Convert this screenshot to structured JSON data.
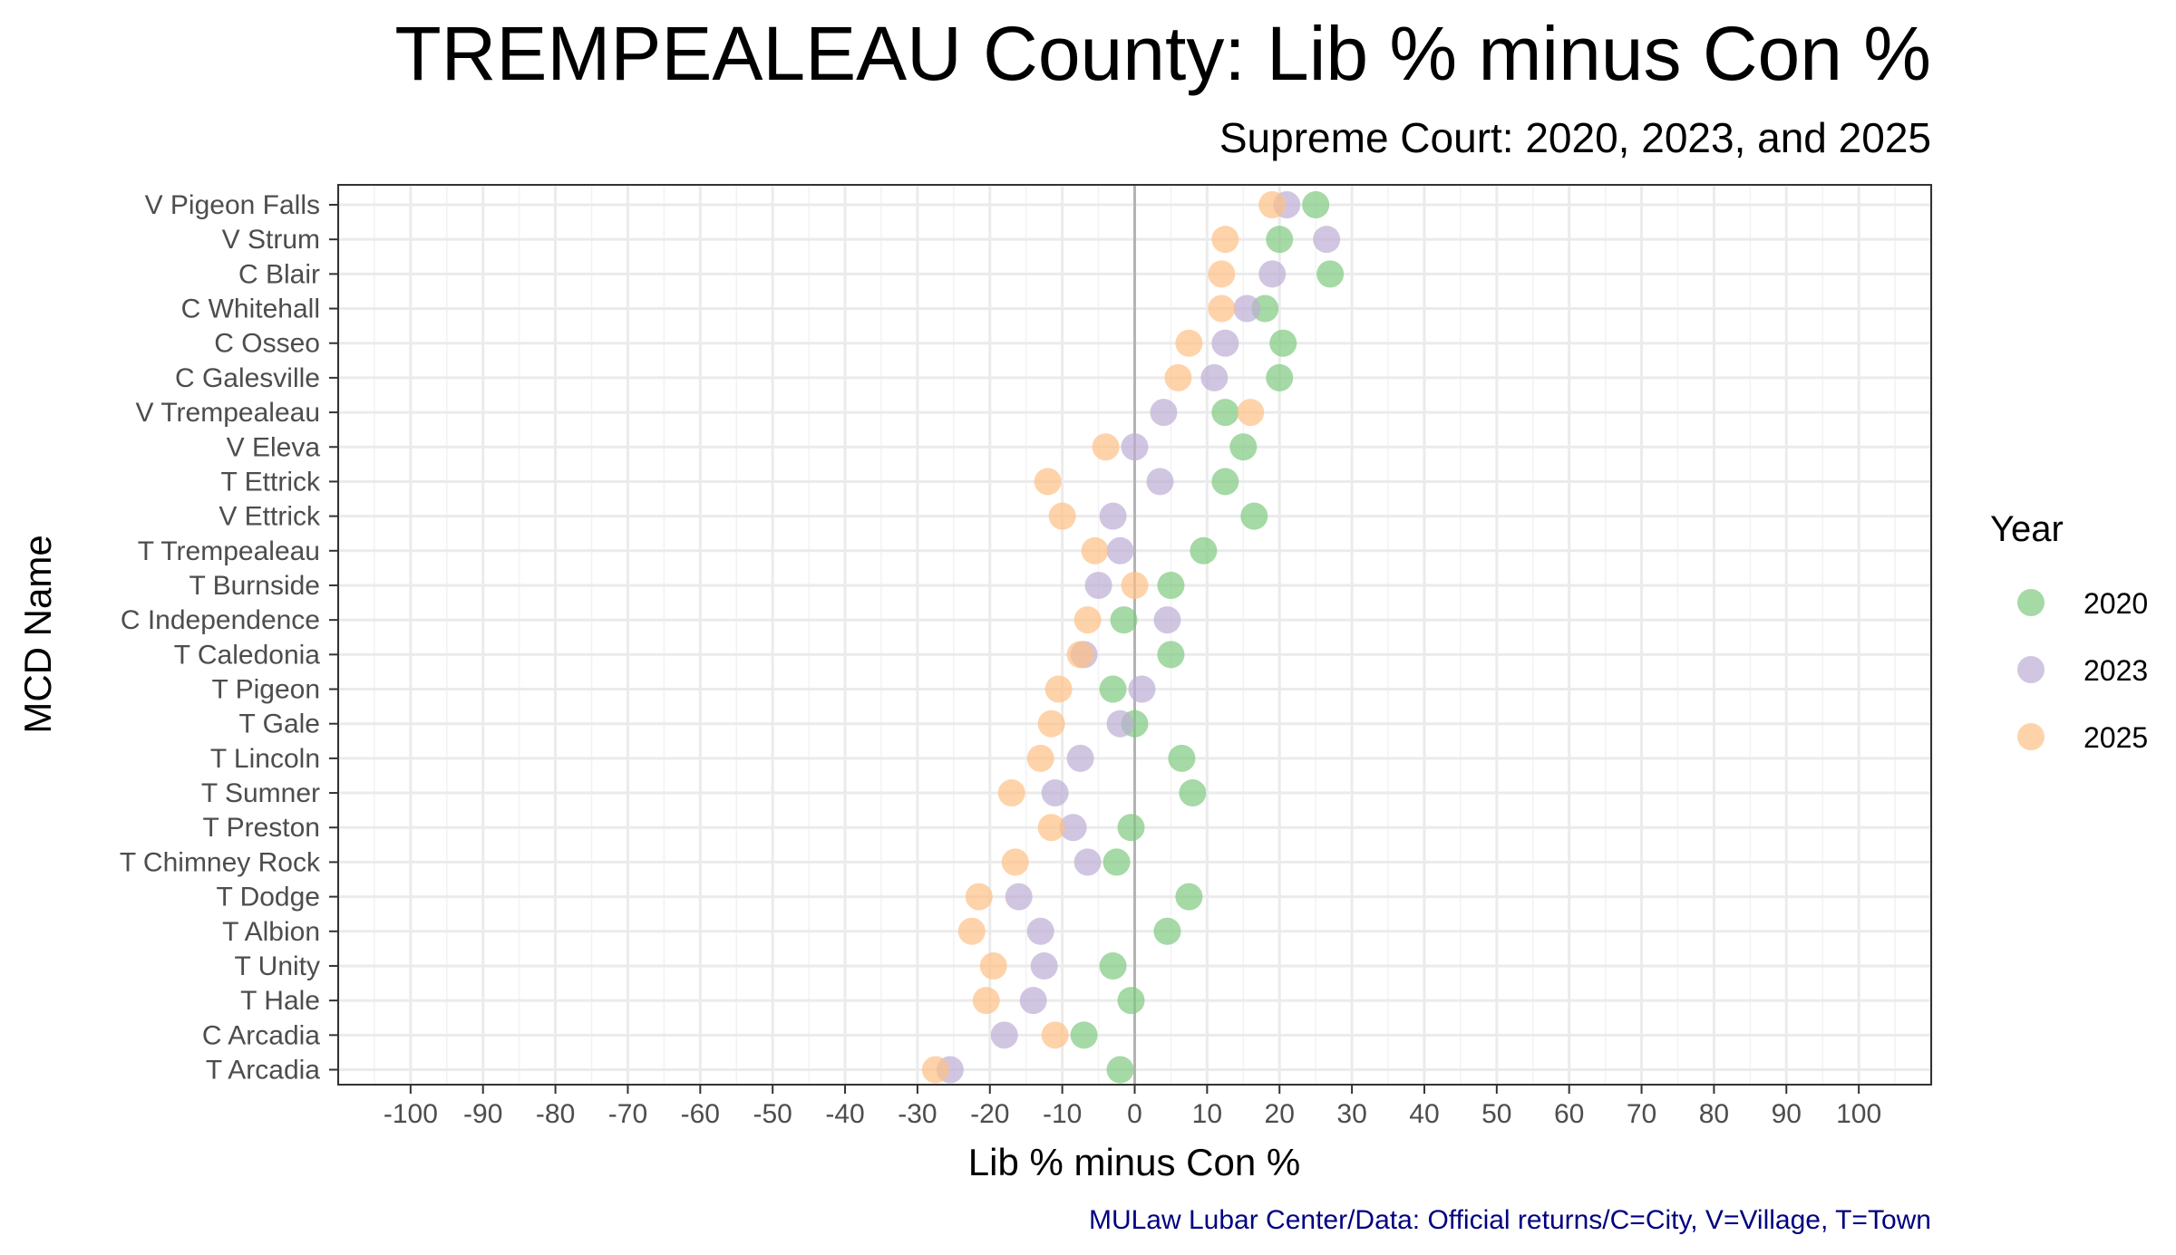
{
  "chart_data": {
    "type": "scatter",
    "title": "TREMPEALEAU County: Lib % minus Con %",
    "subtitle": "Supreme Court: 2020, 2023, and 2025",
    "xlabel": "Lib % minus Con %",
    "ylabel": "MCD Name",
    "caption": "MULaw Lubar Center/Data: Official returns/C=City, V=Village, T=Town",
    "xlim": [
      -110,
      110
    ],
    "x_ticks": [
      "-100",
      "-90",
      "-80",
      "-70",
      "-60",
      "-50",
      "-40",
      "-30",
      "-20",
      "-10",
      "0",
      "10",
      "20",
      "30",
      "40",
      "50",
      "60",
      "70",
      "80",
      "90",
      "100"
    ],
    "grid": true,
    "reference_line_x": 0,
    "legend": {
      "title": "Year",
      "position": "right"
    },
    "categories": [
      "V Pigeon Falls",
      "V Strum",
      "C Blair",
      "C Whitehall",
      "C Osseo",
      "C Galesville",
      "V Trempealeau",
      "V Eleva",
      "T Ettrick",
      "V Ettrick",
      "T Trempealeau",
      "T Burnside",
      "C Independence",
      "T Caledonia",
      "T Pigeon",
      "T Gale",
      "T Lincoln",
      "T Sumner",
      "T Preston",
      "T Chimney Rock",
      "T Dodge",
      "T Albion",
      "T Unity",
      "T Hale",
      "C Arcadia",
      "T Arcadia"
    ],
    "series": [
      {
        "name": "2020",
        "color": "#7fc97f",
        "values": [
          25,
          20,
          27,
          18,
          20.5,
          20,
          12.5,
          15,
          12.5,
          16.5,
          9.5,
          5,
          -1.5,
          5,
          -3,
          0,
          6.5,
          8,
          -0.5,
          -2.5,
          7.5,
          4.5,
          -3,
          -0.5,
          -7,
          -2
        ]
      },
      {
        "name": "2023",
        "color": "#beaed4",
        "values": [
          21,
          26.5,
          19,
          15.5,
          12.5,
          11,
          4,
          0,
          3.5,
          -3,
          -2,
          -5,
          4.5,
          -7,
          1,
          -2,
          -7.5,
          -11,
          -8.5,
          -6.5,
          -16,
          -13,
          -12.5,
          -14,
          -18,
          -25.5
        ]
      },
      {
        "name": "2025",
        "color": "#fdc086",
        "values": [
          19,
          12.5,
          12,
          12,
          7.5,
          6,
          16,
          -4,
          -12,
          -10,
          -5.5,
          0,
          -6.5,
          -7.5,
          -10.5,
          -11.5,
          -13,
          -17,
          -11.5,
          -16.5,
          -21.5,
          -22.5,
          -19.5,
          -20.5,
          -11,
          -27.5
        ]
      }
    ]
  }
}
